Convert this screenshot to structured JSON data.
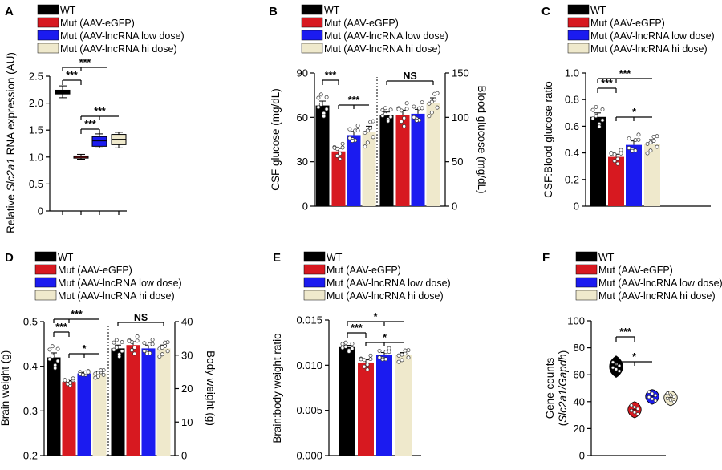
{
  "colors": {
    "WT": "#000000",
    "eGFP": "#d71920",
    "low": "#1b1bf0",
    "hi": "#efe9cc",
    "point": "#ffffff"
  },
  "legend": [
    "WT",
    "Mut (AAV-eGFP)",
    "Mut (AAV-lncRNA low dose)",
    "Mut (AAV-lncRNA hi dose)"
  ],
  "chart_data": [
    {
      "panel": "A",
      "type": "box",
      "ylabel_parts": [
        "Relative ",
        "Slc2a1",
        " RNA expression (AU)"
      ],
      "ylim": [
        0,
        2.5
      ],
      "yticks": [
        "0",
        "0.5",
        "1.0",
        "1.5",
        "2.0",
        "2.5"
      ],
      "series": [
        {
          "name": "WT",
          "min": 2.1,
          "q1": 2.17,
          "median": 2.2,
          "q3": 2.24,
          "max": 2.32
        },
        {
          "name": "Mut (AAV-eGFP)",
          "min": 0.96,
          "q1": 0.98,
          "median": 1.0,
          "q3": 1.02,
          "max": 1.05
        },
        {
          "name": "Mut (AAV-lncRNA low dose)",
          "min": 1.17,
          "q1": 1.2,
          "median": 1.3,
          "q3": 1.38,
          "max": 1.43
        },
        {
          "name": "Mut (AAV-lncRNA hi dose)",
          "min": 1.17,
          "q1": 1.23,
          "median": 1.33,
          "q3": 1.42,
          "max": 1.46
        }
      ],
      "significance": [
        "***",
        "***",
        "***",
        "***"
      ]
    },
    {
      "panel": "B",
      "type": "bar",
      "groups": [
        {
          "ylabel": "CSF glucose (mg/dL)",
          "ylim": [
            0,
            90
          ],
          "yticks": [
            "0",
            "30",
            "60",
            "90"
          ],
          "values": [
            68,
            37,
            48,
            50
          ],
          "errors": [
            3,
            2,
            2.5,
            4
          ]
        },
        {
          "ylabel": "Blood glucose (mg/dL)",
          "ylim": [
            0,
            150
          ],
          "yticks": [
            "0",
            "50",
            "100",
            "150"
          ],
          "values": [
            103,
            103,
            104,
            116
          ],
          "errors": [
            3,
            5,
            5,
            6
          ]
        }
      ],
      "significance": [
        "***",
        "***",
        "NS"
      ]
    },
    {
      "panel": "C",
      "type": "bar",
      "ylabel": "CSF:Blood glucose ratio",
      "ylim": [
        0,
        1.0
      ],
      "yticks": [
        "0",
        "0.2",
        "0.4",
        "0.6",
        "0.8",
        "1.0"
      ],
      "values": [
        0.67,
        0.37,
        0.46,
        0.47
      ],
      "errors": [
        0.03,
        0.02,
        0.03,
        0.03
      ],
      "significance": [
        "***",
        "***",
        "*"
      ]
    },
    {
      "panel": "D",
      "type": "bar",
      "groups": [
        {
          "ylabel": "Brain weight (g)",
          "ylim": [
            0.2,
            0.5
          ],
          "yticks": [
            "0.2",
            "0.3",
            "0.4",
            "0.5"
          ],
          "values": [
            0.42,
            0.365,
            0.384,
            0.384
          ],
          "errors": [
            0.01,
            0.003,
            0.002,
            0.004
          ]
        },
        {
          "ylabel": "Body weight (g)",
          "ylim": [
            0,
            40
          ],
          "yticks": [
            "0",
            "10",
            "20",
            "30",
            "40"
          ],
          "values": [
            32,
            33,
            32,
            32
          ],
          "errors": [
            1,
            1,
            1,
            1
          ]
        }
      ],
      "significance": [
        "***",
        "***",
        "*",
        "NS"
      ]
    },
    {
      "panel": "E",
      "type": "bar",
      "ylabel": "Brain:body weight ratio",
      "ylim": [
        0,
        0.015
      ],
      "yticks": [
        "0.000",
        "0.005",
        "0.010",
        "0.015"
      ],
      "values": [
        0.012,
        0.0103,
        0.0111,
        0.0111
      ],
      "errors": [
        0.0002,
        0.0003,
        0.0003,
        0.0003
      ],
      "significance": [
        "***",
        "*",
        "*"
      ]
    },
    {
      "panel": "F",
      "type": "violin",
      "ylabel_parts": [
        "Gene counts",
        "(",
        "Slc2a1/Gapdh",
        ")"
      ],
      "ylim": [
        0,
        100
      ],
      "yticks": [
        "0",
        "20",
        "40",
        "60",
        "80",
        "100"
      ],
      "series": [
        {
          "name": "WT",
          "median": 66,
          "min": 58,
          "max": 74
        },
        {
          "name": "Mut (AAV-eGFP)",
          "median": 34,
          "min": 28,
          "max": 40
        },
        {
          "name": "Mut (AAV-lncRNA low dose)",
          "median": 44,
          "min": 38,
          "max": 49
        },
        {
          "name": "Mut (AAV-lncRNA hi dose)",
          "median": 43,
          "min": 37,
          "max": 48
        }
      ],
      "significance": [
        "***",
        "*"
      ]
    }
  ]
}
